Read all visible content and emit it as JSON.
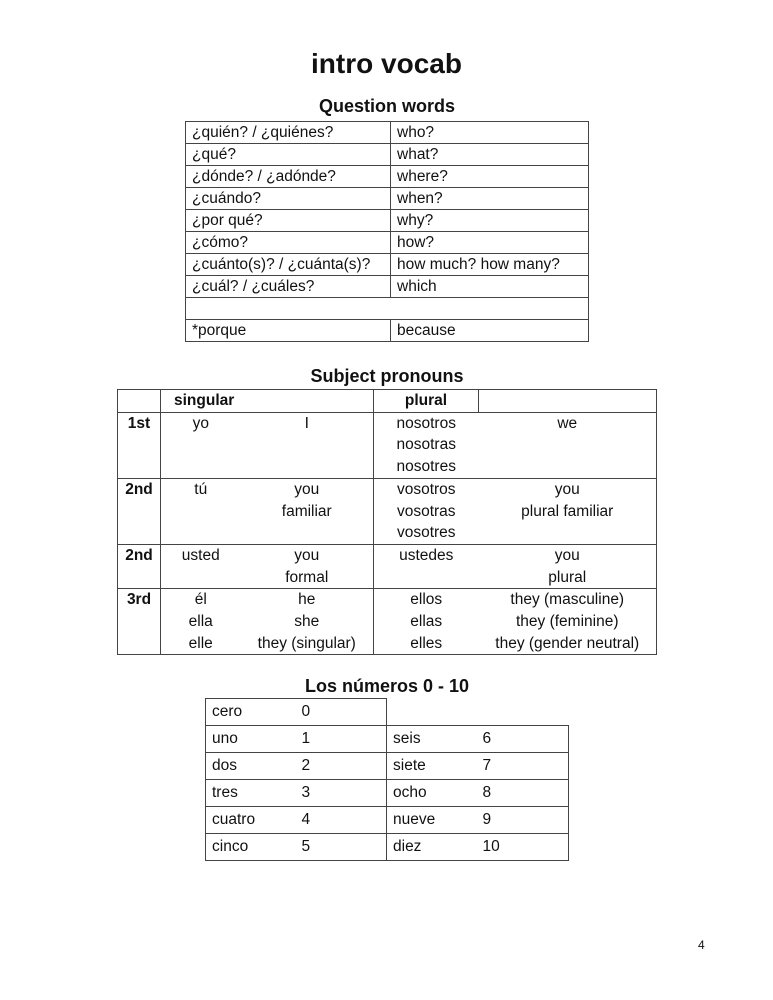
{
  "title": "intro vocab",
  "question_words": {
    "heading": "Question words",
    "rows": [
      [
        "¿quién? / ¿quiénes?",
        "who?"
      ],
      [
        "¿qué?",
        "what?"
      ],
      [
        "¿dónde? / ¿adónde?",
        "where?"
      ],
      [
        "¿cuándo?",
        "when?"
      ],
      [
        "¿por qué?",
        "why?"
      ],
      [
        "¿cómo?",
        "how?"
      ],
      [
        "¿cuánto(s)? / ¿cuánta(s)?",
        "how much? how many?"
      ],
      [
        "¿cuál? / ¿cuáles?",
        "which"
      ]
    ],
    "extra": [
      "*porque",
      "because"
    ]
  },
  "pronouns": {
    "heading": "Subject pronouns",
    "col_singular": "singular",
    "col_plural": "plural",
    "rows": [
      {
        "person": "1st",
        "sing": [
          "yo"
        ],
        "sing_en": [
          "I"
        ],
        "plur": [
          "nosotros",
          "nosotras",
          "nosotres"
        ],
        "plur_en": [
          "we"
        ]
      },
      {
        "person": "2nd",
        "sing": [
          "tú"
        ],
        "sing_en": [
          "you",
          "familiar"
        ],
        "plur": [
          "vosotros",
          "vosotras",
          "vosotres"
        ],
        "plur_en": [
          "you",
          "plural familiar"
        ]
      },
      {
        "person": "2nd",
        "sing": [
          "usted"
        ],
        "sing_en": [
          "you",
          "formal"
        ],
        "plur": [
          "ustedes"
        ],
        "plur_en": [
          "you",
          "plural"
        ]
      },
      {
        "person": "3rd",
        "sing": [
          "él",
          "ella",
          "elle"
        ],
        "sing_en": [
          "he",
          "she",
          "they (singular)"
        ],
        "plur": [
          "ellos",
          "ellas",
          "elles"
        ],
        "plur_en": [
          "they (masculine)",
          "they (feminine)",
          "they (gender neutral)"
        ]
      }
    ]
  },
  "numbers": {
    "heading": "Los números 0 - 10",
    "zero": [
      "cero",
      "0"
    ],
    "rows": [
      [
        [
          "uno",
          "1"
        ],
        [
          "seis",
          "6"
        ]
      ],
      [
        [
          "dos",
          "2"
        ],
        [
          "siete",
          "7"
        ]
      ],
      [
        [
          "tres",
          "3"
        ],
        [
          "ocho",
          "8"
        ]
      ],
      [
        [
          "cuatro",
          "4"
        ],
        [
          "nueve",
          "9"
        ]
      ],
      [
        [
          "cinco",
          "5"
        ],
        [
          "diez",
          "10"
        ]
      ]
    ]
  },
  "page_number": "4"
}
